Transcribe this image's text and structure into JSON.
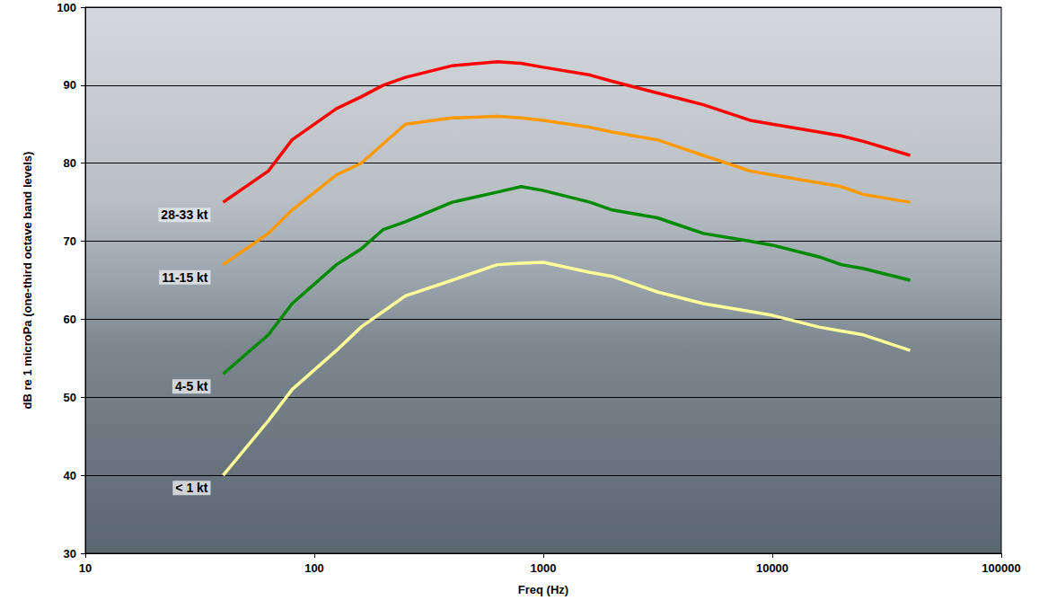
{
  "chart_data": {
    "type": "line",
    "xlabel": "Freq (Hz)",
    "ylabel": "dB re 1 microPa (one-third octave band levels)",
    "log": "x",
    "grid": true,
    "x": [
      40,
      63,
      80,
      125,
      160,
      200,
      250,
      400,
      630,
      800,
      1000,
      1600,
      2000,
      3150,
      5000,
      8000,
      10000,
      16000,
      20000,
      25000,
      40000
    ],
    "xlim": [
      10,
      100000
    ],
    "xticks": [
      10,
      100,
      1000,
      10000,
      100000
    ],
    "ylim": [
      30,
      100
    ],
    "yticks": [
      30,
      40,
      50,
      60,
      70,
      80,
      90,
      100
    ],
    "series": [
      {
        "name": "28-33 kt",
        "color": "#ff0000",
        "values": [
          75,
          79,
          83,
          87,
          88.5,
          90,
          91,
          92.5,
          93,
          92.8,
          92.3,
          91.3,
          90.5,
          89,
          87.5,
          85.5,
          85,
          84,
          83.5,
          82.8,
          81
        ]
      },
      {
        "name": "11-15 kt",
        "color": "#ff9900",
        "values": [
          67,
          71,
          74,
          78.5,
          80,
          82.5,
          85,
          85.8,
          86,
          85.8,
          85.5,
          84.6,
          84,
          83,
          81,
          79,
          78.5,
          77.5,
          77,
          76,
          75
        ]
      },
      {
        "name": "4-5 kt",
        "color": "#008a00",
        "values": [
          53,
          58,
          62,
          67,
          69,
          71.5,
          72.5,
          75,
          76.3,
          77,
          76.5,
          75,
          74,
          73,
          71,
          70,
          69.5,
          68,
          67,
          66.5,
          65
        ]
      },
      {
        "name": "< 1 kt",
        "color": "#ffff99",
        "values": [
          40,
          47,
          51,
          56,
          59,
          61,
          63,
          65,
          67,
          67.2,
          67.3,
          66,
          65.5,
          63.5,
          62,
          61,
          60.5,
          59,
          58.5,
          58,
          56
        ]
      }
    ]
  }
}
